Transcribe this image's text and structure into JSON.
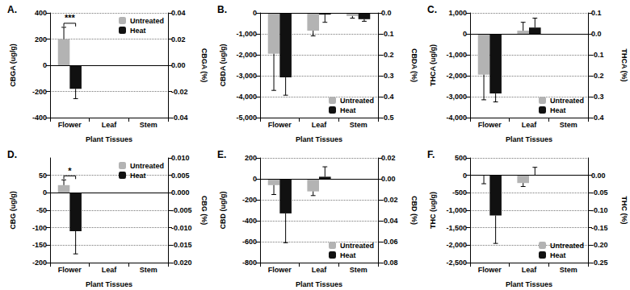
{
  "chart_data": [
    {
      "type": "bar",
      "title": "A.",
      "categories": [
        "Flower",
        "Leaf",
        "Stem"
      ],
      "x_label": "Plant Tissues",
      "y_label": "CBGA (ug/g)",
      "y2_label": "CBGA (%)",
      "ylim": [
        -400,
        400
      ],
      "yticks": [
        -400,
        -200,
        0,
        200,
        400
      ],
      "y2lim": [
        -0.04,
        0.04
      ],
      "y2ticks": [
        -0.04,
        -0.02,
        {
          "value": 0,
          "label": "0.00"
        },
        0.02,
        0.04
      ],
      "grid": true,
      "legend": "upper right",
      "series": [
        {
          "name": "Untreated",
          "color": "#b3b3b3",
          "values": [
            200,
            null,
            null
          ],
          "errors": [
            90,
            null,
            null
          ]
        },
        {
          "name": "Heat",
          "color": "#111111",
          "values": [
            -180,
            null,
            null
          ],
          "errors": [
            75,
            null,
            null
          ]
        }
      ],
      "annotations": [
        {
          "text": "***",
          "category": "Flower"
        }
      ]
    },
    {
      "type": "bar",
      "title": "B.",
      "categories": [
        "Flower",
        "Leaf",
        "Stem"
      ],
      "x_label": "Plant Tissues",
      "y_label": "CBDA (ug/g)",
      "y2_label": "CBDA (%)",
      "ylim": [
        -5000,
        0
      ],
      "yticks": [
        {
          "value": -5000,
          "label": "-5,000"
        },
        {
          "value": -4000,
          "label": "-4,000"
        },
        {
          "value": -3000,
          "label": "-3,000"
        },
        {
          "value": -2000,
          "label": "-2,000"
        },
        {
          "value": -1000,
          "label": "-1,000"
        },
        0
      ],
      "y2lim": [
        -0.5,
        0
      ],
      "y2ticks": [
        -0.5,
        -0.4,
        -0.3,
        -0.2,
        -0.1,
        {
          "value": 0,
          "label": "0.0"
        }
      ],
      "grid": true,
      "legend": "lower right",
      "series": [
        {
          "name": "Untreated",
          "color": "#b3b3b3",
          "values": [
            -1950,
            -850,
            -150
          ],
          "errors": [
            1750,
            250,
            100
          ]
        },
        {
          "name": "Heat",
          "color": "#111111",
          "values": [
            -3080,
            -80,
            -300
          ],
          "errors": [
            850,
            370,
            100
          ]
        }
      ]
    },
    {
      "type": "bar",
      "title": "C.",
      "categories": [
        "Flower",
        "Leaf",
        "Stem"
      ],
      "x_label": "Plant Tissues",
      "y_label": "THCA (ug/g)",
      "y2_label": "THCA (%)",
      "ylim": [
        -4000,
        1000
      ],
      "yticks": [
        {
          "value": -4000,
          "label": "-4,000"
        },
        {
          "value": -3000,
          "label": "-3,000"
        },
        {
          "value": -2000,
          "label": "-2,000"
        },
        {
          "value": -1000,
          "label": "-1,000"
        },
        0,
        {
          "value": 1000,
          "label": "1,000"
        }
      ],
      "y2lim": [
        -0.4,
        0.1
      ],
      "y2ticks": [
        -0.4,
        -0.3,
        -0.2,
        -0.1,
        {
          "value": 0,
          "label": "0.0"
        },
        0.1
      ],
      "grid": true,
      "legend": "lower right",
      "series": [
        {
          "name": "Untreated",
          "color": "#b3b3b3",
          "values": [
            -1950,
            150,
            null
          ],
          "errors": [
            1200,
            400,
            null
          ]
        },
        {
          "name": "Heat",
          "color": "#111111",
          "values": [
            -2850,
            300,
            null
          ],
          "errors": [
            400,
            450,
            null
          ]
        }
      ]
    },
    {
      "type": "bar",
      "title": "D.",
      "categories": [
        "Flower",
        "Leaf",
        "Stem"
      ],
      "x_label": "Plant Tissues",
      "y_label": "CBG (ug/g)",
      "y2_label": "CBG (%)",
      "ylim": [
        -200,
        100
      ],
      "yticks": [
        -200,
        -150,
        -100,
        -50,
        0,
        50
      ],
      "y2lim": [
        -0.02,
        0.01
      ],
      "y2ticks": [
        {
          "value": -0.02,
          "label": "-0.020"
        },
        -0.015,
        {
          "value": -0.01,
          "label": "-0.010"
        },
        -0.005,
        {
          "value": 0,
          "label": "0.000"
        },
        0.005,
        {
          "value": 0.01,
          "label": "0.010"
        }
      ],
      "grid": true,
      "legend": "upper right",
      "series": [
        {
          "name": "Untreated",
          "color": "#b3b3b3",
          "values": [
            22,
            null,
            null
          ],
          "errors": [
            15,
            null,
            null
          ]
        },
        {
          "name": "Heat",
          "color": "#111111",
          "values": [
            -110,
            null,
            null
          ],
          "errors": [
            65,
            null,
            null
          ]
        }
      ],
      "annotations": [
        {
          "text": "*",
          "category": "Flower"
        }
      ]
    },
    {
      "type": "bar",
      "title": "E.",
      "categories": [
        "Flower",
        "Leaf",
        "Stem"
      ],
      "x_label": "Plant Tissues",
      "y_label": "CBD (ug/g)",
      "y2_label": "CBD (%)",
      "ylim": [
        -800,
        200
      ],
      "yticks": [
        -800,
        -600,
        -400,
        -200,
        0,
        200
      ],
      "y2lim": [
        -0.08,
        0.02
      ],
      "y2ticks": [
        -0.08,
        -0.06,
        -0.04,
        -0.02,
        {
          "value": 0,
          "label": "0.00"
        },
        0.02
      ],
      "grid": true,
      "legend": "lower right",
      "series": [
        {
          "name": "Untreated",
          "color": "#b3b3b3",
          "values": [
            -60,
            -120,
            null
          ],
          "errors": [
            90,
            40,
            null
          ]
        },
        {
          "name": "Heat",
          "color": "#111111",
          "values": [
            -330,
            20,
            null
          ],
          "errors": [
            280,
            95,
            null
          ]
        }
      ]
    },
    {
      "type": "bar",
      "title": "F.",
      "categories": [
        "Flower",
        "Leaf",
        "Stem"
      ],
      "x_label": "Plant Tissues",
      "y_label": "THC (ug/g)",
      "y2_label": "THC (%)",
      "ylim": [
        -2500,
        500
      ],
      "yticks": [
        {
          "value": -2500,
          "label": "-2,500"
        },
        {
          "value": -2000,
          "label": "-2,000"
        },
        {
          "value": -1500,
          "label": "-1,500"
        },
        {
          "value": -1000,
          "label": "-1,000"
        },
        -500,
        0,
        500
      ],
      "y2lim": [
        -0.25,
        0.05
      ],
      "y2ticks": [
        -0.25,
        {
          "value": -0.2,
          "label": "-0.20"
        },
        -0.15,
        {
          "value": -0.1,
          "label": "-0.10"
        },
        -0.05,
        {
          "value": 0,
          "label": "0.00"
        }
      ],
      "grid": true,
      "legend": "lower right",
      "series": [
        {
          "name": "Untreated",
          "color": "#b3b3b3",
          "values": [
            -10,
            -220,
            null
          ],
          "errors": [
            230,
            100,
            null
          ]
        },
        {
          "name": "Heat",
          "color": "#111111",
          "values": [
            -1150,
            10,
            null
          ],
          "errors": [
            800,
            220,
            null
          ]
        }
      ]
    }
  ]
}
